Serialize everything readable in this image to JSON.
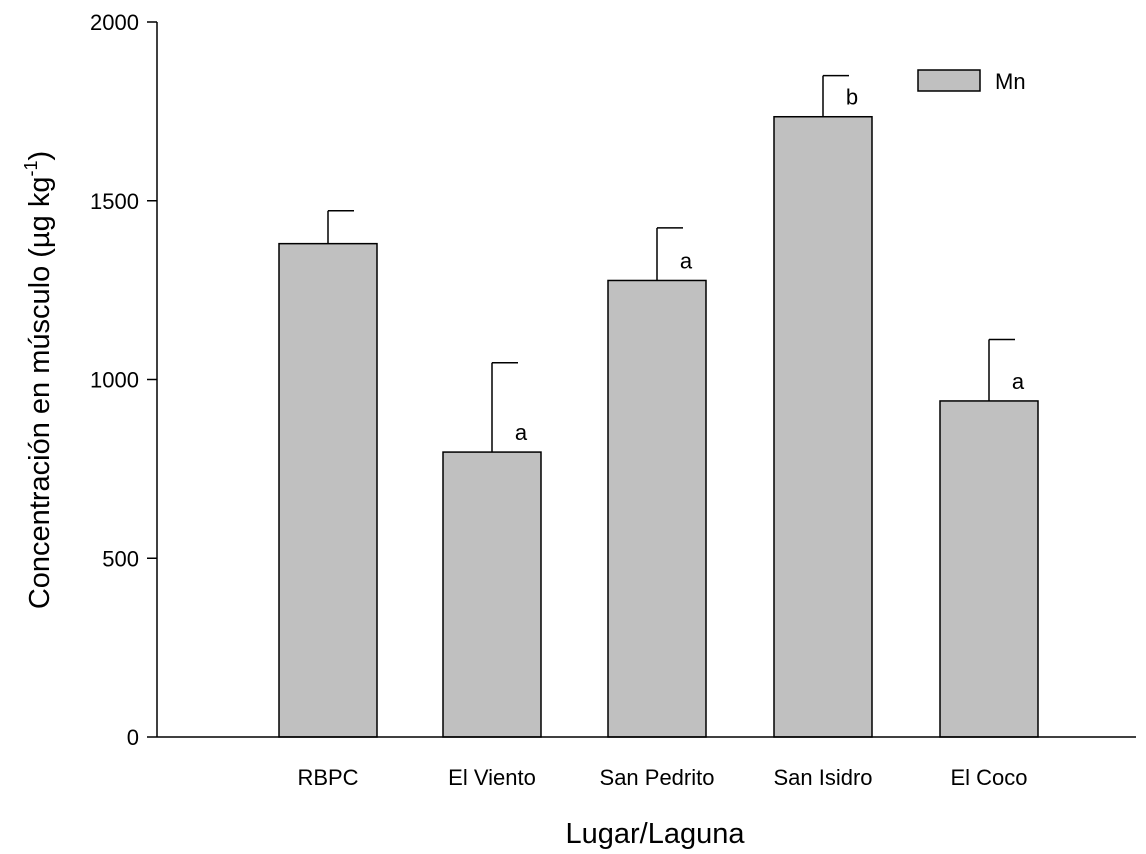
{
  "chart_data": {
    "type": "bar",
    "title": "",
    "xlabel": "Lugar/Laguna",
    "ylabel": {
      "main": "Concentración en músculo (µg kg",
      "superscript": "-1",
      "close": ")"
    },
    "ylim": [
      0,
      2000
    ],
    "yticks": [
      0,
      500,
      1000,
      1500,
      2000
    ],
    "categories": [
      "RBPC",
      "El Viento",
      "San Pedrito",
      "San Isidro",
      "El Coco"
    ],
    "series": [
      {
        "name": "Mn",
        "color": "#c0c0c0",
        "values": [
          1380,
          797,
          1277,
          1735,
          940
        ],
        "error": [
          92,
          250,
          147,
          115,
          172
        ],
        "significance": [
          "",
          "a",
          "a",
          "b",
          "a"
        ]
      }
    ],
    "legend_position": "top-right",
    "grid": false
  }
}
